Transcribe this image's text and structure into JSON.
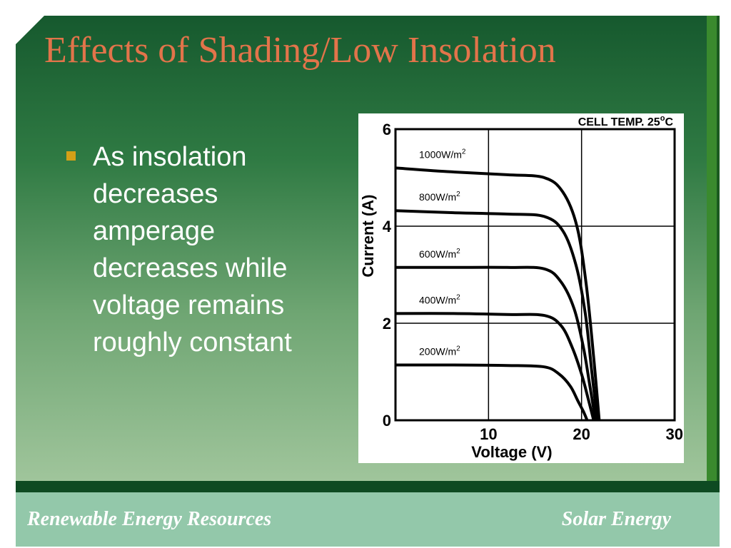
{
  "slide": {
    "title": "Effects of Shading/Low Insolation",
    "bullet": "As insolation decreases amperage decreases while voltage remains roughly constant"
  },
  "footer": {
    "left": "Renewable Energy Resources",
    "right": "Solar Energy"
  },
  "colors": {
    "title": "#e2744a",
    "bullet_marker": "#d4a017",
    "footer_bg": "#93c8aa"
  },
  "chart_data": {
    "type": "line",
    "title": "",
    "annotation": "CELL TEMP. 25",
    "annotation_unit_sup": "o",
    "annotation_unit": "C",
    "xlabel": "Voltage (V)",
    "ylabel": "Current (A)",
    "xlim": [
      0,
      30
    ],
    "ylim": [
      0,
      6
    ],
    "x_ticks": [
      10,
      20,
      30
    ],
    "x_tick_labels": [
      "10",
      "20",
      "30"
    ],
    "y_ticks": [
      0,
      2,
      4,
      6
    ],
    "y_tick_labels": [
      "0",
      "2",
      "4",
      "6"
    ],
    "grid": true,
    "series": [
      {
        "name": "1000W/m",
        "label_sup": "2",
        "points": [
          [
            0,
            5.2
          ],
          [
            6,
            5.12
          ],
          [
            12,
            5.06
          ],
          [
            16,
            5.0
          ],
          [
            18,
            4.7
          ],
          [
            19.5,
            4.0
          ],
          [
            20.5,
            2.8
          ],
          [
            21.3,
            1.3
          ],
          [
            21.9,
            0
          ]
        ]
      },
      {
        "name": "800W/m",
        "label_sup": "2",
        "points": [
          [
            0,
            4.32
          ],
          [
            6,
            4.28
          ],
          [
            12,
            4.25
          ],
          [
            16,
            4.2
          ],
          [
            18,
            3.9
          ],
          [
            19.4,
            3.2
          ],
          [
            20.4,
            2.2
          ],
          [
            21.1,
            1.0
          ],
          [
            21.7,
            0
          ]
        ]
      },
      {
        "name": "600W/m",
        "label_sup": "2",
        "points": [
          [
            0,
            3.15
          ],
          [
            6,
            3.15
          ],
          [
            12,
            3.15
          ],
          [
            16,
            3.12
          ],
          [
            17.8,
            2.85
          ],
          [
            19.2,
            2.3
          ],
          [
            20.2,
            1.5
          ],
          [
            20.9,
            0.7
          ],
          [
            21.5,
            0
          ]
        ]
      },
      {
        "name": "400W/m",
        "label_sup": "2",
        "points": [
          [
            0,
            2.2
          ],
          [
            6,
            2.2
          ],
          [
            12,
            2.18
          ],
          [
            16,
            2.16
          ],
          [
            17.8,
            1.95
          ],
          [
            19.0,
            1.5
          ],
          [
            20.0,
            0.95
          ],
          [
            20.7,
            0.45
          ],
          [
            21.3,
            0
          ]
        ]
      },
      {
        "name": "200W/m",
        "label_sup": "2",
        "points": [
          [
            0,
            1.14
          ],
          [
            6,
            1.14
          ],
          [
            12,
            1.13
          ],
          [
            16,
            1.1
          ],
          [
            17.6,
            0.95
          ],
          [
            18.8,
            0.7
          ],
          [
            19.6,
            0.4
          ],
          [
            20.2,
            0.18
          ],
          [
            20.6,
            0
          ]
        ]
      }
    ]
  }
}
